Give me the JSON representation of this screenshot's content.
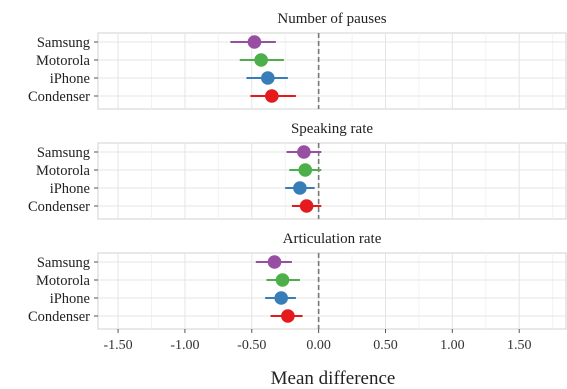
{
  "chart_data": {
    "type": "forest",
    "xlabel": "Mean difference",
    "xlim": [
      -1.65,
      1.85
    ],
    "xticks": [
      -1.5,
      -1.0,
      -0.5,
      0.0,
      0.5,
      1.0,
      1.5
    ],
    "xtick_labels": [
      "-1.50",
      "-1.00",
      "-0.50",
      "0.00",
      "0.50",
      "1.00",
      "1.50"
    ],
    "reference_line": 0.0,
    "grid": true,
    "colors": {
      "Samsung": "#984ea3",
      "Motorola": "#4daf4a",
      "iPhone": "#377eb8",
      "Condenser": "#e41a1c"
    },
    "categories": [
      "Samsung",
      "Motorola",
      "iPhone",
      "Condenser"
    ],
    "panels": [
      {
        "title": "Number of pauses",
        "points": [
          {
            "device": "Samsung",
            "estimate": -0.48,
            "lower": -0.66,
            "upper": -0.32
          },
          {
            "device": "Motorola",
            "estimate": -0.43,
            "lower": -0.59,
            "upper": -0.26
          },
          {
            "device": "iPhone",
            "estimate": -0.38,
            "lower": -0.54,
            "upper": -0.23
          },
          {
            "device": "Condenser",
            "estimate": -0.35,
            "lower": -0.51,
            "upper": -0.17
          }
        ]
      },
      {
        "title": "Speaking rate",
        "points": [
          {
            "device": "Samsung",
            "estimate": -0.11,
            "lower": -0.24,
            "upper": 0.02
          },
          {
            "device": "Motorola",
            "estimate": -0.1,
            "lower": -0.22,
            "upper": 0.02
          },
          {
            "device": "iPhone",
            "estimate": -0.14,
            "lower": -0.25,
            "upper": -0.03
          },
          {
            "device": "Condenser",
            "estimate": -0.09,
            "lower": -0.2,
            "upper": 0.02
          }
        ]
      },
      {
        "title": "Articulation rate",
        "points": [
          {
            "device": "Samsung",
            "estimate": -0.33,
            "lower": -0.47,
            "upper": -0.2
          },
          {
            "device": "Motorola",
            "estimate": -0.27,
            "lower": -0.39,
            "upper": -0.14
          },
          {
            "device": "iPhone",
            "estimate": -0.28,
            "lower": -0.4,
            "upper": -0.17
          },
          {
            "device": "Condenser",
            "estimate": -0.23,
            "lower": -0.36,
            "upper": -0.12
          }
        ]
      }
    ]
  }
}
